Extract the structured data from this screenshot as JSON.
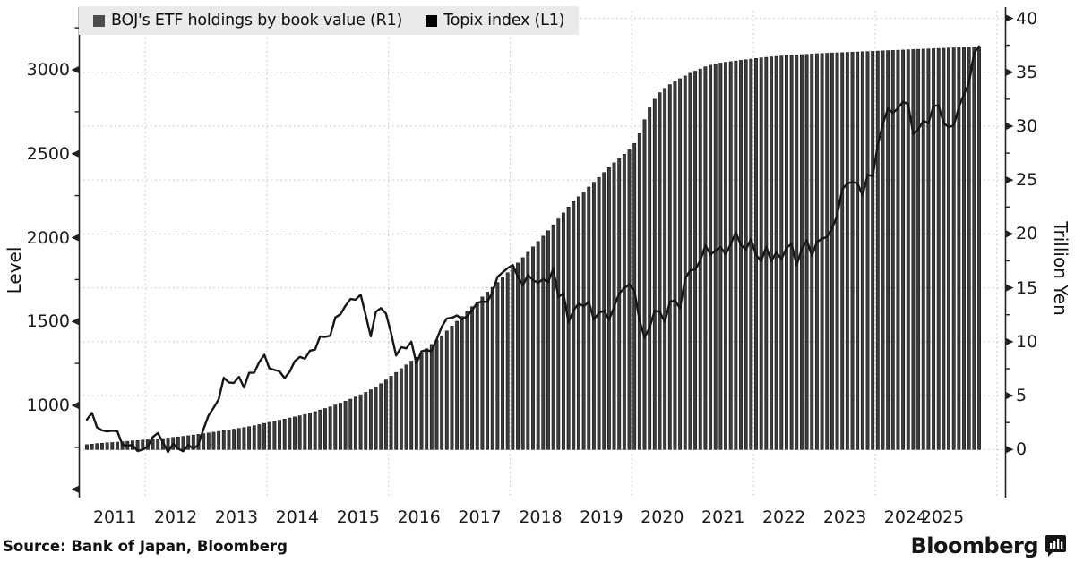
{
  "legend": {
    "items": [
      {
        "label": "BOJ's ETF holdings by book value (R1)",
        "marker_color": "#4d4d4d"
      },
      {
        "label": "Topix index (L1)",
        "marker_color": "#000000"
      }
    ]
  },
  "axes": {
    "left": {
      "title": "Level",
      "ticks": [
        1000,
        1500,
        2000,
        2500,
        3000
      ]
    },
    "right": {
      "title": "Trillion Yen",
      "ticks": [
        0,
        5,
        10,
        15,
        20,
        25,
        30,
        35,
        40
      ]
    },
    "x": {
      "ticks": [
        "2011",
        "2012",
        "2013",
        "2014",
        "2015",
        "2016",
        "2017",
        "2018",
        "2019",
        "2020",
        "2021",
        "2022",
        "2023",
        "2024",
        "2025"
      ]
    }
  },
  "footer": {
    "source": "Source: Bank of Japan, Bloomberg",
    "brand": "Bloomberg",
    "brand_icon": "bloomberg-terminal-icon"
  },
  "colors": {
    "bar": "#3c3c3c",
    "bar_edge": "#151515",
    "line": "#161616",
    "grid": "#c7c7c7",
    "axis": "#222222"
  },
  "chart_data": {
    "type": "bar+line",
    "frequency": "monthly",
    "x_start": "2011-01",
    "x_end": "2025-09",
    "grid": true,
    "legend_position": "top-left",
    "left_axis": {
      "label": "Level",
      "min": 500,
      "max": 3250,
      "major_step": 500,
      "minor_step": 250
    },
    "right_axis": {
      "label": "Trillion Yen",
      "min": 0,
      "max": 40,
      "major_step": 5,
      "minor_step": 2.5
    },
    "x_gridlines_years": [
      2012,
      2014,
      2016,
      2018,
      2020,
      2022,
      2024,
      2026
    ],
    "series": [
      {
        "name": "BOJ's ETF holdings by book value (R1)",
        "type": "bar",
        "axis": "right",
        "unit": "trillion yen",
        "values": [
          0.45,
          0.5,
          0.55,
          0.58,
          0.62,
          0.65,
          0.68,
          0.72,
          0.76,
          0.8,
          0.83,
          0.87,
          0.9,
          0.94,
          0.98,
          1.02,
          1.07,
          1.12,
          1.17,
          1.22,
          1.28,
          1.34,
          1.4,
          1.47,
          1.54,
          1.61,
          1.68,
          1.75,
          1.82,
          1.89,
          1.96,
          2.04,
          2.12,
          2.21,
          2.31,
          2.42,
          2.52,
          2.62,
          2.72,
          2.82,
          2.92,
          3.02,
          3.13,
          3.25,
          3.38,
          3.52,
          3.66,
          3.8,
          3.95,
          4.12,
          4.3,
          4.48,
          4.67,
          4.87,
          5.08,
          5.3,
          5.54,
          5.8,
          6.1,
          6.45,
          6.8,
          7.15,
          7.5,
          7.85,
          8.2,
          8.55,
          8.95,
          9.35,
          9.75,
          10.15,
          10.55,
          11.0,
          11.45,
          11.9,
          12.35,
          12.8,
          13.25,
          13.7,
          14.15,
          14.6,
          15.05,
          15.5,
          15.95,
          16.4,
          16.85,
          17.3,
          17.8,
          18.3,
          18.8,
          19.3,
          19.8,
          20.3,
          20.85,
          21.4,
          21.95,
          22.5,
          23.0,
          23.45,
          23.9,
          24.35,
          24.8,
          25.25,
          25.7,
          26.15,
          26.6,
          27.0,
          27.4,
          27.8,
          28.4,
          29.3,
          30.6,
          31.7,
          32.5,
          33.1,
          33.5,
          33.85,
          34.15,
          34.4,
          34.65,
          34.9,
          35.1,
          35.3,
          35.5,
          35.65,
          35.75,
          35.85,
          35.92,
          35.98,
          36.04,
          36.1,
          36.16,
          36.22,
          36.28,
          36.33,
          36.38,
          36.42,
          36.46,
          36.5,
          36.54,
          36.57,
          36.6,
          36.63,
          36.66,
          36.69,
          36.72,
          36.74,
          36.76,
          36.78,
          36.8,
          36.82,
          36.84,
          36.86,
          36.88,
          36.9,
          36.92,
          36.94,
          36.96,
          36.98,
          37.0,
          37.02,
          37.04,
          37.06,
          37.08,
          37.1,
          37.12,
          37.14,
          37.16,
          37.18,
          37.2,
          37.22,
          37.24,
          37.26,
          37.28,
          37.3,
          37.32,
          37.34,
          37.36
        ]
      },
      {
        "name": "Topix index (L1)",
        "type": "line",
        "axis": "left",
        "unit": "index level",
        "values": [
          915,
          955,
          869,
          851,
          845,
          849,
          846,
          765,
          761,
          764,
          728,
          736,
          755,
          812,
          835,
          780,
          722,
          771,
          742,
          727,
          765,
          742,
          766,
          860,
          940,
          986,
          1035,
          1165,
          1136,
          1134,
          1170,
          1106,
          1194,
          1195,
          1258,
          1302,
          1221,
          1211,
          1203,
          1162,
          1201,
          1263,
          1289,
          1278,
          1326,
          1333,
          1410,
          1408,
          1415,
          1524,
          1543,
          1593,
          1634,
          1630,
          1660,
          1537,
          1411,
          1558,
          1580,
          1547,
          1432,
          1297,
          1347,
          1340,
          1380,
          1250,
          1322,
          1329,
          1323,
          1393,
          1469,
          1518,
          1522,
          1536,
          1513,
          1531,
          1568,
          1612,
          1618,
          1617,
          1675,
          1766,
          1792,
          1818,
          1837,
          1768,
          1716,
          1777,
          1747,
          1730,
          1753,
          1735,
          1817,
          1646,
          1667,
          1494,
          1567,
          1607,
          1591,
          1617,
          1512,
          1551,
          1565,
          1511,
          1587,
          1667,
          1699,
          1721,
          1684,
          1510,
          1403,
          1464,
          1563,
          1559,
          1496,
          1618,
          1625,
          1579,
          1755,
          1805,
          1809,
          1864,
          1954,
          1898,
          1922,
          1944,
          1901,
          1961,
          2031,
          1958,
          1928,
          1992,
          1896,
          1860,
          1946,
          1860,
          1913,
          1871,
          1940,
          1963,
          1836,
          1929,
          1986,
          1892,
          1975,
          1993,
          2004,
          2057,
          2131,
          2289,
          2322,
          2332,
          2323,
          2254,
          2375,
          2366,
          2551,
          2676,
          2769,
          2743,
          2773,
          2810,
          2794,
          2617,
          2646,
          2696,
          2681,
          2785,
          2788,
          2682,
          2659,
          2667,
          2778,
          2853,
          2920,
          3100,
          3140
        ]
      }
    ]
  }
}
